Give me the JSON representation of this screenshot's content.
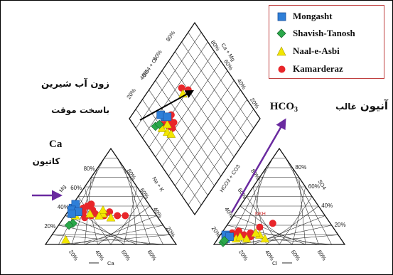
{
  "legend": {
    "items": [
      {
        "name": "Mongasht",
        "symbol": "square",
        "color": "#2f7fd8"
      },
      {
        "name": "Shavish-Tanosh",
        "symbol": "diamond",
        "color": "#2aa84a"
      },
      {
        "name": "Naal-e-Asbi",
        "symbol": "triangle",
        "color": "#f2e600"
      },
      {
        "name": "Kamarderaz",
        "symbol": "circle",
        "color": "#e8262a"
      }
    ]
  },
  "annotations": {
    "freshwater_zone_line1": "زون آب شیرین",
    "freshwater_zone_line2": "باسخت موقت",
    "cation_label": "Ca",
    "cation_caption": "کاتیون",
    "anion_word": "آنیون",
    "dominant_word": "غالب",
    "anion_formula_main": "HCO",
    "anion_formula_sub": "3",
    "overlap_label": "NKH"
  },
  "chart_data": {
    "type": "scatter",
    "subtype": "piper-trilinear",
    "tick_labels": [
      "20%",
      "40%",
      "60%",
      "80%"
    ],
    "axes": {
      "cation_triangle": {
        "left": "Mg",
        "right": "Na + K",
        "bottom": "Ca"
      },
      "anion_triangle": {
        "left": "HCO3 + CO3",
        "right": "SO4",
        "bottom": "Cl"
      },
      "diamond": {
        "upper_left": "SO4 + Cl",
        "upper_right": "Ca + Mg"
      }
    },
    "series": [
      {
        "name": "Mongasht",
        "cation_points": [
          [
            60,
            38
          ],
          [
            56,
            42
          ],
          [
            62,
            36
          ],
          [
            58,
            34
          ],
          [
            64,
            32
          ]
        ],
        "anion_points": [
          [
            88,
            6
          ],
          [
            86,
            10
          ],
          [
            84,
            8
          ]
        ],
        "diamond_points": [
          [
            28,
            74
          ],
          [
            26,
            78
          ],
          [
            30,
            72
          ]
        ]
      },
      {
        "name": "Shavish-Tanosh",
        "cation_points": [
          [
            68,
            22
          ],
          [
            72,
            20
          ]
        ],
        "anion_points": [
          [
            92,
            2
          ],
          [
            90,
            4
          ]
        ],
        "diamond_points": [
          [
            16,
            76
          ],
          [
            20,
            74
          ]
        ]
      },
      {
        "name": "Naal-e-Asbi",
        "cation_points": [
          [
            82,
            5
          ],
          [
            40,
            32
          ],
          [
            38,
            36
          ],
          [
            44,
            30
          ],
          [
            36,
            28
          ],
          [
            62,
            30
          ],
          [
            50,
            32
          ]
        ],
        "anion_points": [
          [
            80,
            6
          ],
          [
            76,
            8
          ],
          [
            60,
            10
          ],
          [
            62,
            12
          ],
          [
            58,
            6
          ],
          [
            72,
            6
          ]
        ],
        "diamond_points": [
          [
            22,
            64
          ],
          [
            24,
            60
          ],
          [
            20,
            70
          ],
          [
            26,
            68
          ],
          [
            54,
            72
          ]
        ]
      },
      {
        "name": "Kamarderaz",
        "cation_points": [
          [
            52,
            38
          ],
          [
            48,
            40
          ],
          [
            46,
            36
          ],
          [
            44,
            42
          ],
          [
            54,
            34
          ],
          [
            40,
            30
          ],
          [
            34,
            34
          ],
          [
            30,
            30
          ],
          [
            24,
            30
          ],
          [
            56,
            28
          ],
          [
            50,
            30
          ],
          [
            46,
            32
          ]
        ],
        "anion_points": [
          [
            80,
            12
          ],
          [
            78,
            10
          ],
          [
            74,
            14
          ],
          [
            72,
            10
          ],
          [
            68,
            8
          ],
          [
            66,
            12
          ],
          [
            56,
            18
          ],
          [
            44,
            22
          ]
        ],
        "diamond_points": [
          [
            24,
            70
          ],
          [
            26,
            66
          ],
          [
            22,
            72
          ],
          [
            30,
            68
          ],
          [
            32,
            64
          ],
          [
            34,
            70
          ],
          [
            28,
            62
          ],
          [
            56,
            76
          ],
          [
            60,
            70
          ]
        ]
      }
    ]
  }
}
